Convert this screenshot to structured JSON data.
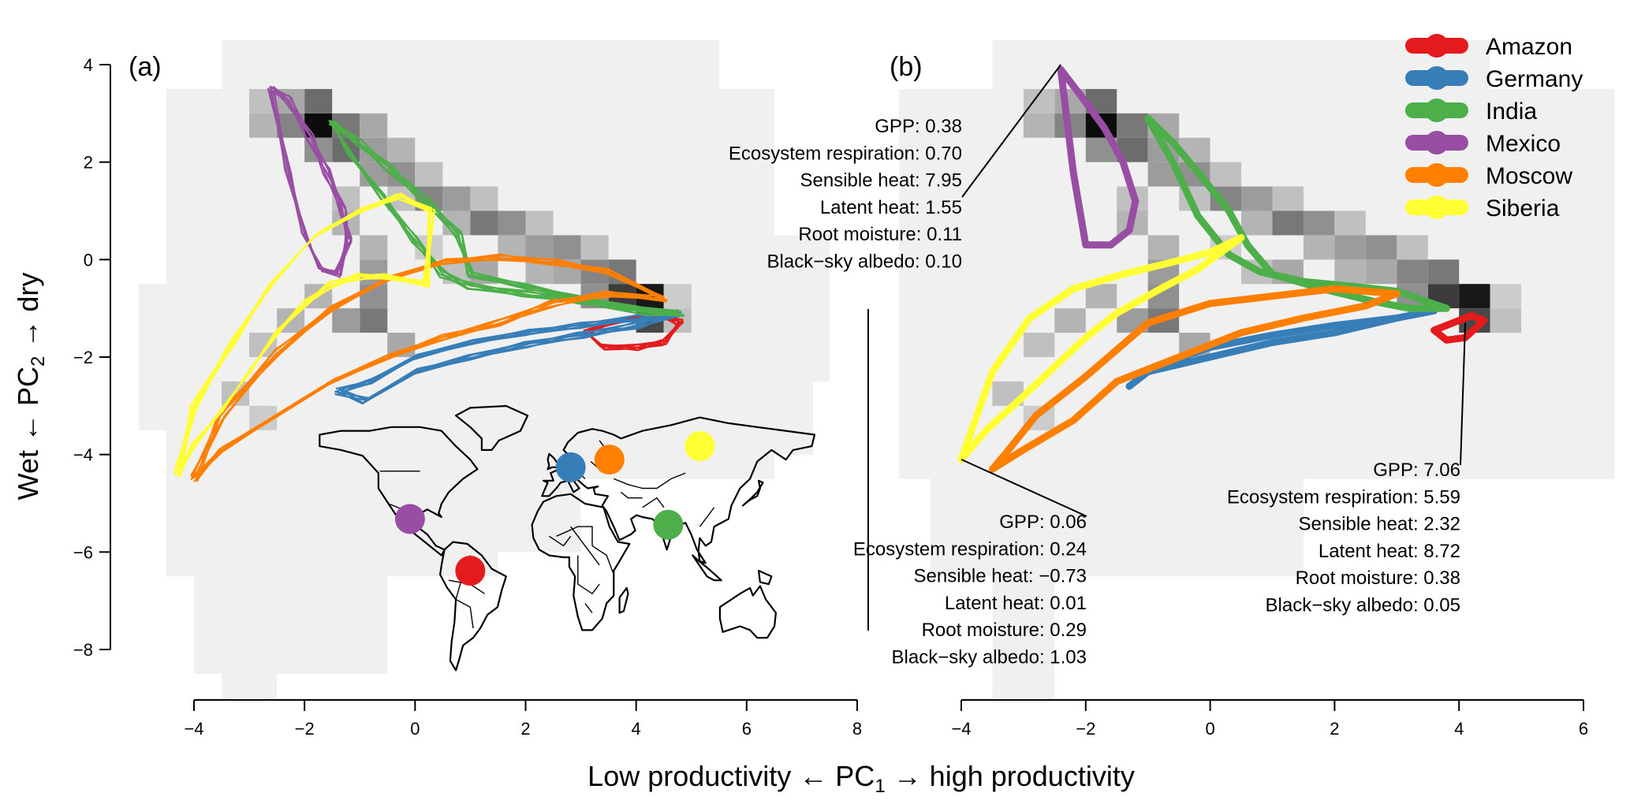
{
  "chart_data": [
    {
      "panel": "(a)",
      "type": "line",
      "background": "2d-histogram",
      "xlabel": "Low productivity ← PC₁ → high productivity",
      "ylabel": "Wet ← PC₂ → dry",
      "xlim": [
        -4,
        8
      ],
      "ylim": [
        -9,
        4.5
      ],
      "xticks": [
        -4,
        -2,
        0,
        2,
        4,
        6,
        8
      ],
      "yticks": [
        -8,
        -6,
        -4,
        -2,
        0,
        2,
        4
      ],
      "grid": false,
      "inset": "world-map",
      "series": [
        {
          "name": "Amazon",
          "color": "#e41a1c",
          "x": [
            3.1,
            3.5,
            4.0,
            4.4,
            4.8,
            4.5,
            4.0,
            3.4,
            3.1
          ],
          "y": [
            -1.5,
            -1.3,
            -1.2,
            -1.1,
            -1.3,
            -1.7,
            -1.8,
            -1.8,
            -1.5
          ]
        },
        {
          "name": "Germany",
          "color": "#377eb8",
          "x": [
            -1.4,
            -0.8,
            0.0,
            1.0,
            2.0,
            3.0,
            4.0,
            4.8,
            4.0,
            3.0,
            2.0,
            1.0,
            0.0,
            -0.9,
            -1.4
          ],
          "y": [
            -2.7,
            -2.5,
            -2.0,
            -1.7,
            -1.5,
            -1.35,
            -1.2,
            -1.1,
            -1.35,
            -1.55,
            -1.75,
            -2.0,
            -2.3,
            -2.9,
            -2.7
          ]
        },
        {
          "name": "India",
          "color": "#4daf4a",
          "x": [
            -1.5,
            -1.0,
            -0.5,
            0.2,
            0.8,
            1.0,
            2.0,
            3.0,
            4.0,
            4.8,
            4.2,
            3.0,
            2.0,
            1.0,
            0.5,
            0.0,
            -0.6,
            -1.2,
            -1.5
          ],
          "y": [
            2.8,
            2.4,
            1.9,
            1.2,
            0.5,
            -0.3,
            -0.55,
            -0.8,
            -1.0,
            -1.1,
            -1.1,
            -0.85,
            -0.7,
            -0.55,
            -0.3,
            0.4,
            1.3,
            2.2,
            2.8
          ]
        },
        {
          "name": "Mexico",
          "color": "#984ea3",
          "x": [
            -2.6,
            -2.3,
            -1.9,
            -1.6,
            -1.3,
            -1.2,
            -1.4,
            -1.7,
            -2.0,
            -2.3,
            -2.6
          ],
          "y": [
            3.5,
            3.3,
            2.5,
            1.8,
            1.0,
            0.4,
            -0.3,
            -0.2,
            0.5,
            1.8,
            3.5
          ]
        },
        {
          "name": "Moscow",
          "color": "#ff7f00",
          "x": [
            -4.0,
            -3.5,
            -2.5,
            -1.5,
            -0.5,
            0.5,
            1.5,
            2.5,
            3.5,
            4.5,
            3.5,
            2.5,
            1.5,
            0.5,
            -0.5,
            -1.5,
            -2.5,
            -3.5,
            -4.0
          ],
          "y": [
            -4.5,
            -3.9,
            -3.2,
            -2.5,
            -2.0,
            -1.6,
            -1.3,
            -0.9,
            -0.7,
            -0.8,
            -0.25,
            -0.05,
            0.05,
            -0.05,
            -0.4,
            -1.0,
            -1.9,
            -3.2,
            -4.5
          ]
        },
        {
          "name": "Siberia",
          "color": "#ffff33",
          "x": [
            -4.3,
            -4.0,
            -3.5,
            -3.0,
            -2.5,
            -2.0,
            -1.5,
            -1.0,
            -0.5,
            0.2,
            0.3,
            -0.3,
            -1.0,
            -1.8,
            -2.6,
            -3.3,
            -4.0,
            -4.3
          ],
          "y": [
            -4.4,
            -3.8,
            -3.1,
            -2.3,
            -1.5,
            -0.9,
            -0.5,
            -0.35,
            -0.35,
            -0.5,
            1.0,
            1.3,
            1.0,
            0.5,
            -0.5,
            -1.7,
            -3.0,
            -4.4
          ]
        }
      ]
    },
    {
      "panel": "(b)",
      "type": "line",
      "background": "2d-histogram",
      "xlim": [
        -4,
        6
      ],
      "ylim": [
        -9,
        4.5
      ],
      "xticks": [
        -4,
        -2,
        0,
        2,
        4,
        6
      ],
      "grid": false,
      "legend_position": "top-right",
      "legend": [
        "Amazon",
        "Germany",
        "India",
        "Mexico",
        "Moscow",
        "Siberia"
      ],
      "series": [
        {
          "name": "Amazon",
          "color": "#e41a1c",
          "x": [
            3.6,
            3.9,
            4.2,
            4.4,
            4.1,
            3.8,
            3.6
          ],
          "y": [
            -1.45,
            -1.3,
            -1.15,
            -1.25,
            -1.6,
            -1.65,
            -1.45
          ]
        },
        {
          "name": "Germany",
          "color": "#377eb8",
          "x": [
            -1.3,
            -1.0,
            0.0,
            1.0,
            2.0,
            3.0,
            3.6,
            3.0,
            2.0,
            1.0,
            0.0,
            -0.9,
            -1.3
          ],
          "y": [
            -2.6,
            -2.3,
            -2.0,
            -1.7,
            -1.5,
            -1.2,
            -1.05,
            -1.2,
            -1.35,
            -1.55,
            -1.8,
            -2.2,
            -2.6
          ]
        },
        {
          "name": "India",
          "color": "#4daf4a",
          "x": [
            -1.0,
            -0.6,
            -0.2,
            0.3,
            0.6,
            1.0,
            1.8,
            2.6,
            3.2,
            3.8,
            3.0,
            2.3,
            1.5,
            0.8,
            0.3,
            -0.2,
            -0.6,
            -1.0
          ],
          "y": [
            2.9,
            2.4,
            1.8,
            1.0,
            0.3,
            -0.3,
            -0.6,
            -0.85,
            -1.0,
            -1.0,
            -0.65,
            -0.55,
            -0.45,
            -0.25,
            0.1,
            0.9,
            2.0,
            2.9
          ]
        },
        {
          "name": "Mexico",
          "color": "#984ea3",
          "x": [
            -2.4,
            -2.1,
            -1.7,
            -1.4,
            -1.2,
            -1.3,
            -1.6,
            -2.0,
            -2.2,
            -2.4
          ],
          "y": [
            3.9,
            3.4,
            2.7,
            2.0,
            1.2,
            0.6,
            0.3,
            0.3,
            1.8,
            3.9
          ]
        },
        {
          "name": "Moscow",
          "color": "#ff7f00",
          "x": [
            -3.5,
            -3.0,
            -2.2,
            -1.5,
            -0.5,
            0.5,
            1.5,
            2.5,
            3.0,
            2.0,
            1.0,
            0.0,
            -1.0,
            -2.0,
            -2.8,
            -3.3,
            -3.5
          ],
          "y": [
            -4.3,
            -3.9,
            -3.3,
            -2.5,
            -2.0,
            -1.5,
            -1.2,
            -0.95,
            -0.7,
            -0.6,
            -0.75,
            -0.9,
            -1.3,
            -2.4,
            -3.2,
            -4.0,
            -4.3
          ]
        },
        {
          "name": "Siberia",
          "color": "#ffff33",
          "x": [
            -4.0,
            -3.6,
            -3.0,
            -2.5,
            -2.0,
            -1.5,
            -0.8,
            -0.2,
            0.5,
            0.0,
            -0.6,
            -1.4,
            -2.2,
            -2.9,
            -3.5,
            -4.0
          ],
          "y": [
            -4.1,
            -3.5,
            -2.8,
            -2.2,
            -1.6,
            -1.1,
            -0.6,
            -0.2,
            0.45,
            0.15,
            -0.05,
            -0.3,
            -0.6,
            -1.2,
            -2.3,
            -4.1
          ]
        }
      ],
      "annotations": [
        {
          "point": [
            -2.4,
            4.0
          ],
          "lines": [
            "GPP: 0.38",
            "Ecosystem respiration: 0.70",
            "Sensible heat: 7.95",
            "Latent heat: 1.55",
            "Root moisture: 0.11",
            "Black−sky albedo: 0.10"
          ]
        },
        {
          "point": [
            -4.0,
            -4.1
          ],
          "lines": [
            "GPP: 0.06",
            "Ecosystem respiration: 0.24",
            "Sensible heat: −0.73",
            "Latent heat: 0.01",
            "Root moisture: 0.29",
            "Black−sky albedo: 1.03"
          ]
        },
        {
          "point": [
            4.1,
            -1.3
          ],
          "lines": [
            "GPP: 7.06",
            "Ecosystem respiration: 5.59",
            "Sensible heat: 2.32",
            "Latent heat: 8.72",
            "Root moisture: 0.38",
            "Black−sky albedo: 0.05"
          ]
        }
      ]
    }
  ],
  "map_markers": [
    {
      "name": "Amazon",
      "color": "#e41a1c",
      "lon": -60,
      "lat": -3
    },
    {
      "name": "Germany",
      "color": "#377eb8",
      "lon": 10,
      "lat": 51
    },
    {
      "name": "India",
      "color": "#4daf4a",
      "lon": 78,
      "lat": 21
    },
    {
      "name": "Mexico",
      "color": "#984ea3",
      "lon": -102,
      "lat": 24
    },
    {
      "name": "Moscow",
      "color": "#ff7f00",
      "lon": 37,
      "lat": 55
    },
    {
      "name": "Siberia",
      "color": "#ffff33",
      "lon": 100,
      "lat": 62
    }
  ],
  "text": {
    "xlabel_pre": "Low productivity ← PC",
    "xlabel_sub": "1",
    "xlabel_post": " → high productivity",
    "ylabel_pre": "Wet ← PC",
    "ylabel_sub": "2",
    "ylabel_post": " → dry"
  }
}
